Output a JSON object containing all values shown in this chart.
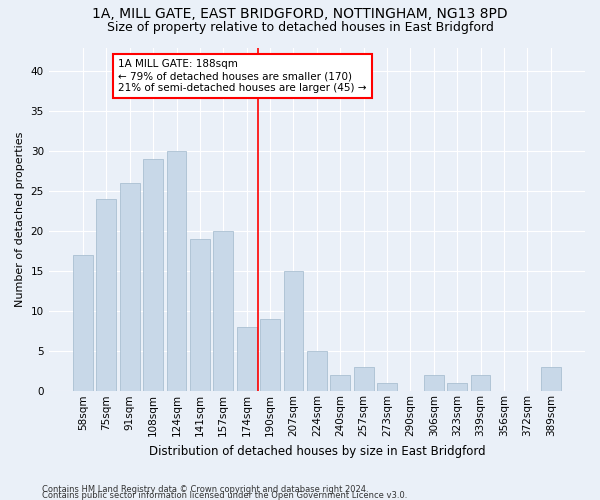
{
  "title1": "1A, MILL GATE, EAST BRIDGFORD, NOTTINGHAM, NG13 8PD",
  "title2": "Size of property relative to detached houses in East Bridgford",
  "xlabel": "Distribution of detached houses by size in East Bridgford",
  "ylabel": "Number of detached properties",
  "categories": [
    "58sqm",
    "75sqm",
    "91sqm",
    "108sqm",
    "124sqm",
    "141sqm",
    "157sqm",
    "174sqm",
    "190sqm",
    "207sqm",
    "224sqm",
    "240sqm",
    "257sqm",
    "273sqm",
    "290sqm",
    "306sqm",
    "323sqm",
    "339sqm",
    "356sqm",
    "372sqm",
    "389sqm"
  ],
  "values": [
    17,
    24,
    26,
    29,
    30,
    19,
    20,
    8,
    9,
    15,
    5,
    2,
    3,
    1,
    0,
    2,
    1,
    2,
    0,
    0,
    3
  ],
  "bar_color": "#c8d8e8",
  "bar_edge_color": "#a0b8cc",
  "vline_index": 7.5,
  "vline_color": "red",
  "annotation_text": "1A MILL GATE: 188sqm\n← 79% of detached houses are smaller (170)\n21% of semi-detached houses are larger (45) →",
  "annotation_box_color": "white",
  "annotation_box_edge": "red",
  "ylim": [
    0,
    43
  ],
  "yticks": [
    0,
    5,
    10,
    15,
    20,
    25,
    30,
    35,
    40
  ],
  "bg_color": "#eaf0f8",
  "footer1": "Contains HM Land Registry data © Crown copyright and database right 2024.",
  "footer2": "Contains public sector information licensed under the Open Government Licence v3.0.",
  "title1_fontsize": 10,
  "title2_fontsize": 9,
  "xlabel_fontsize": 8.5,
  "ylabel_fontsize": 8,
  "tick_fontsize": 7.5,
  "footer_fontsize": 6,
  "annot_fontsize": 7.5
}
